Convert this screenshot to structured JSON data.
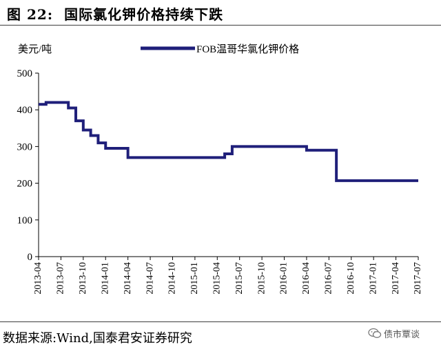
{
  "header": {
    "figure_label": "图 22:",
    "title": "国际氯化钾价格持续下跌"
  },
  "chart_data": {
    "type": "line",
    "title": "国际氯化钾价格持续下跌",
    "ylabel": "美元/吨",
    "xlabel": "",
    "ylim": [
      0,
      500
    ],
    "yticks": [
      0,
      100,
      200,
      300,
      400,
      500
    ],
    "xlim": [
      "2013-04",
      "2017-07"
    ],
    "xtick_labels": [
      "2013-04",
      "2013-07",
      "2013-10",
      "2014-01",
      "2014-04",
      "2014-07",
      "2014-10",
      "2015-01",
      "2015-04",
      "2015-07",
      "2015-10",
      "2016-01",
      "2016-04",
      "2016-07",
      "2016-10",
      "2017-01",
      "2017-04",
      "2017-07"
    ],
    "grid": false,
    "legend_position": "top-center",
    "line_color": "#1f1f7a",
    "series": [
      {
        "name": "FOB温哥华氯化钾价格",
        "step": true,
        "points": [
          {
            "x": "2013-04",
            "y": 415
          },
          {
            "x": "2013-05",
            "y": 420
          },
          {
            "x": "2013-07",
            "y": 420
          },
          {
            "x": "2013-08",
            "y": 405
          },
          {
            "x": "2013-09",
            "y": 370
          },
          {
            "x": "2013-10",
            "y": 345
          },
          {
            "x": "2013-11",
            "y": 330
          },
          {
            "x": "2013-12",
            "y": 310
          },
          {
            "x": "2014-01",
            "y": 295
          },
          {
            "x": "2014-04",
            "y": 270
          },
          {
            "x": "2015-05",
            "y": 280
          },
          {
            "x": "2015-06",
            "y": 300
          },
          {
            "x": "2016-03",
            "y": 300
          },
          {
            "x": "2016-04",
            "y": 290
          },
          {
            "x": "2016-08",
            "y": 207
          },
          {
            "x": "2017-07",
            "y": 207
          }
        ]
      }
    ]
  },
  "footer": {
    "source": "数据来源:Wind,国泰君安证券研究",
    "watermark": "债市覃谈"
  }
}
